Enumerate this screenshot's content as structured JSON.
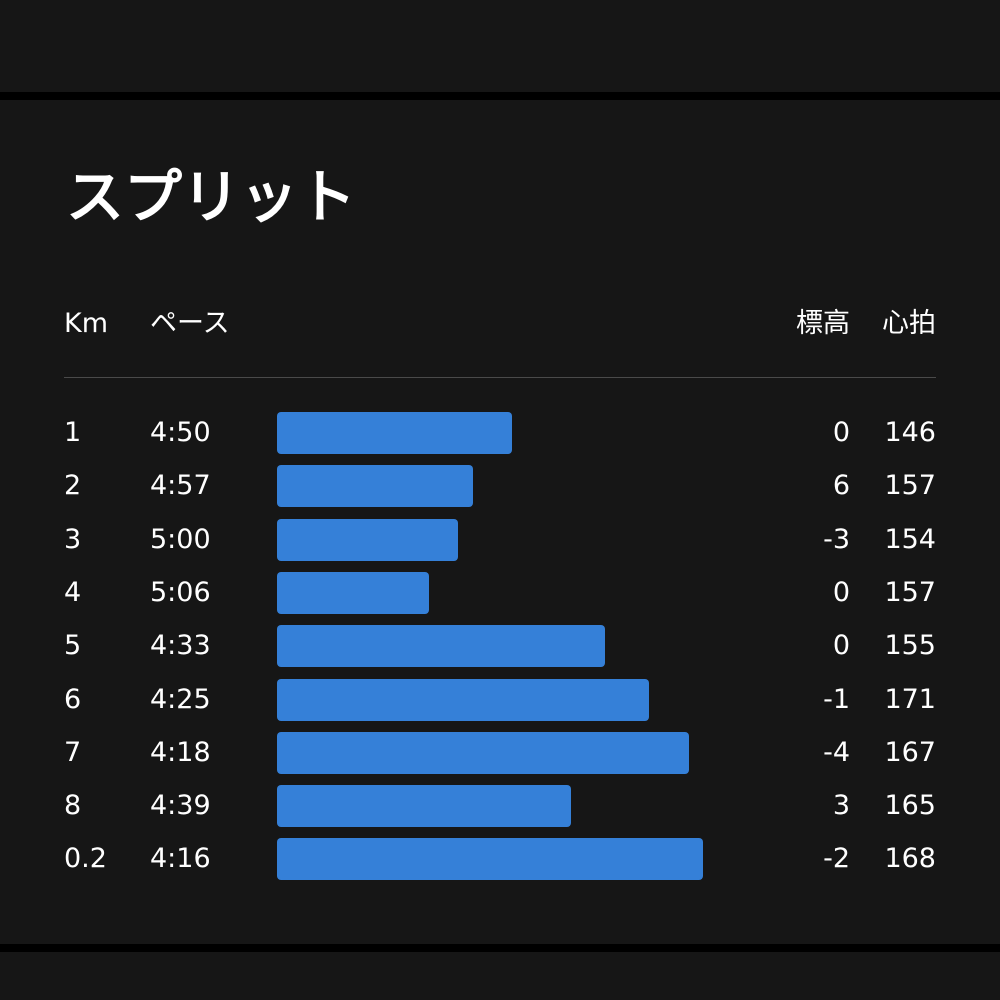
{
  "title": "スプリット",
  "headers": {
    "km": "Km",
    "pace": "ペース",
    "elevation": "標高",
    "heart_rate": "心拍"
  },
  "colors": {
    "bar": "#3580d8",
    "card_background": "#161616",
    "page_background": "#000000",
    "text": "#ffffff",
    "divider": "#4a4a4a"
  },
  "splits": [
    {
      "km": "1",
      "pace": "4:50",
      "elevation": "0",
      "heart_rate": "146",
      "speed_fraction": 0.48
    },
    {
      "km": "2",
      "pace": "4:57",
      "elevation": "6",
      "heart_rate": "157",
      "speed_fraction": 0.4
    },
    {
      "km": "3",
      "pace": "5:00",
      "elevation": "-3",
      "heart_rate": "154",
      "speed_fraction": 0.37
    },
    {
      "km": "4",
      "pace": "5:06",
      "elevation": "0",
      "heart_rate": "157",
      "speed_fraction": 0.31
    },
    {
      "km": "5",
      "pace": "4:33",
      "elevation": "0",
      "heart_rate": "155",
      "speed_fraction": 0.67
    },
    {
      "km": "6",
      "pace": "4:25",
      "elevation": "-1",
      "heart_rate": "171",
      "speed_fraction": 0.76
    },
    {
      "km": "7",
      "pace": "4:18",
      "elevation": "-4",
      "heart_rate": "167",
      "speed_fraction": 0.84
    },
    {
      "km": "8",
      "pace": "4:39",
      "elevation": "3",
      "heart_rate": "165",
      "speed_fraction": 0.6
    },
    {
      "km": "0.2",
      "pace": "4:16",
      "elevation": "-2",
      "heart_rate": "168",
      "speed_fraction": 0.87
    }
  ]
}
